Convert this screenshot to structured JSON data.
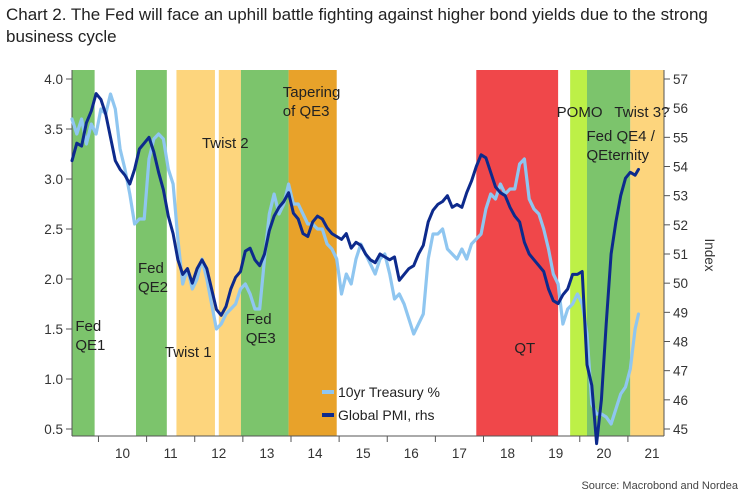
{
  "title": "Chart 2. The Fed will face an uphill battle fighting against higher bond yields due to the strong business cycle",
  "source": "Source: Macrobond and Nordea",
  "chart_data": {
    "type": "line",
    "x_range": [
      2009.45,
      2021.75
    ],
    "x_ticks": [
      {
        "label": "10",
        "value": 2010.5
      },
      {
        "label": "11",
        "value": 2011.5
      },
      {
        "label": "12",
        "value": 2012.5
      },
      {
        "label": "13",
        "value": 2013.5
      },
      {
        "label": "14",
        "value": 2014.5
      },
      {
        "label": "15",
        "value": 2015.5
      },
      {
        "label": "16",
        "value": 2016.5
      },
      {
        "label": "17",
        "value": 2017.5
      },
      {
        "label": "18",
        "value": 2018.5
      },
      {
        "label": "19",
        "value": 2019.5
      },
      {
        "label": "20",
        "value": 2020.5
      },
      {
        "label": "21",
        "value": 2021.5
      }
    ],
    "y_left": {
      "min": 0.5,
      "max": 4.0,
      "step": 0.5,
      "tick_labels": [
        "0.5",
        "1.0",
        "1.5",
        "2.0",
        "2.5",
        "3.0",
        "3.5",
        "4.0"
      ]
    },
    "y_right": {
      "min": 45,
      "max": 57,
      "step": 1,
      "label": "Index",
      "tick_labels": [
        "45",
        "46",
        "47",
        "48",
        "49",
        "50",
        "51",
        "52",
        "53",
        "54",
        "55",
        "56",
        "57"
      ]
    },
    "bands": [
      {
        "start": 2009.45,
        "end": 2009.92,
        "color": "#7cc46c",
        "label": "Fed\nQE1",
        "label_x": 2009.52,
        "label_y": 1.48
      },
      {
        "start": 2010.78,
        "end": 2011.42,
        "color": "#7cc46c",
        "label": "Fed\nQE2",
        "label_x": 2010.82,
        "label_y": 2.06
      },
      {
        "start": 2011.62,
        "end": 2012.42,
        "color": "#fdd57d",
        "label": "Twist 1",
        "label_x": 2011.38,
        "label_y": 1.22
      },
      {
        "start": 2012.5,
        "end": 2012.96,
        "color": "#fdd57d",
        "label": "Twist 2",
        "label_x": 2012.15,
        "label_y": 3.31
      },
      {
        "start": 2012.96,
        "end": 2013.95,
        "color": "#7cc46c",
        "label": "Fed\nQE3",
        "label_x": 2013.06,
        "label_y": 1.55
      },
      {
        "start": 2013.95,
        "end": 2014.95,
        "color": "#e8a22a",
        "label": "Tapering\nof QE3",
        "label_x": 2013.83,
        "label_y": 3.82
      },
      {
        "start": 2017.85,
        "end": 2019.55,
        "color": "#f0474a",
        "label": "QT",
        "label_x": 2018.64,
        "label_y": 1.26
      },
      {
        "start": 2019.8,
        "end": 2020.15,
        "color": "#bdf047",
        "label": "POMO",
        "label_x": 2019.52,
        "label_y": 3.62
      },
      {
        "start": 2020.15,
        "end": 2021.05,
        "color": "#7cc46c",
        "label": "Fed QE4 /\nQEternity",
        "label_x": 2020.14,
        "label_y": 3.38
      },
      {
        "start": 2021.05,
        "end": 2021.75,
        "color": "#fdd57d",
        "label": "Twist 3?",
        "label_x": 2020.72,
        "label_y": 3.62
      }
    ],
    "series": [
      {
        "name": "10yr Treasury %",
        "axis": "left",
        "color": "#8fc6f0",
        "points": [
          [
            2009.45,
            3.6
          ],
          [
            2009.55,
            3.45
          ],
          [
            2009.65,
            3.6
          ],
          [
            2009.75,
            3.35
          ],
          [
            2009.85,
            3.55
          ],
          [
            2009.95,
            3.45
          ],
          [
            2010.05,
            3.7
          ],
          [
            2010.15,
            3.65
          ],
          [
            2010.25,
            3.85
          ],
          [
            2010.35,
            3.7
          ],
          [
            2010.45,
            3.3
          ],
          [
            2010.55,
            3.1
          ],
          [
            2010.65,
            2.85
          ],
          [
            2010.75,
            2.55
          ],
          [
            2010.85,
            2.6
          ],
          [
            2010.95,
            2.6
          ],
          [
            2011.05,
            3.2
          ],
          [
            2011.15,
            3.4
          ],
          [
            2011.25,
            3.45
          ],
          [
            2011.35,
            3.4
          ],
          [
            2011.45,
            3.1
          ],
          [
            2011.55,
            2.95
          ],
          [
            2011.65,
            2.4
          ],
          [
            2011.75,
            1.95
          ],
          [
            2011.85,
            2.1
          ],
          [
            2011.95,
            1.9
          ],
          [
            2012.05,
            2.0
          ],
          [
            2012.15,
            2.2
          ],
          [
            2012.25,
            2.0
          ],
          [
            2012.35,
            1.75
          ],
          [
            2012.45,
            1.5
          ],
          [
            2012.55,
            1.55
          ],
          [
            2012.65,
            1.65
          ],
          [
            2012.75,
            1.7
          ],
          [
            2012.85,
            1.75
          ],
          [
            2012.95,
            1.9
          ],
          [
            2013.05,
            1.95
          ],
          [
            2013.15,
            1.85
          ],
          [
            2013.25,
            1.7
          ],
          [
            2013.35,
            1.7
          ],
          [
            2013.45,
            2.2
          ],
          [
            2013.55,
            2.65
          ],
          [
            2013.65,
            2.85
          ],
          [
            2013.75,
            2.65
          ],
          [
            2013.85,
            2.75
          ],
          [
            2013.95,
            2.95
          ],
          [
            2014.05,
            2.75
          ],
          [
            2014.15,
            2.75
          ],
          [
            2014.25,
            2.65
          ],
          [
            2014.35,
            2.55
          ],
          [
            2014.45,
            2.55
          ],
          [
            2014.55,
            2.5
          ],
          [
            2014.65,
            2.5
          ],
          [
            2014.75,
            2.35
          ],
          [
            2014.85,
            2.3
          ],
          [
            2014.95,
            2.2
          ],
          [
            2015.05,
            1.85
          ],
          [
            2015.15,
            2.05
          ],
          [
            2015.25,
            1.95
          ],
          [
            2015.35,
            2.2
          ],
          [
            2015.45,
            2.35
          ],
          [
            2015.55,
            2.25
          ],
          [
            2015.65,
            2.15
          ],
          [
            2015.75,
            2.05
          ],
          [
            2015.85,
            2.2
          ],
          [
            2015.95,
            2.25
          ],
          [
            2016.05,
            2.05
          ],
          [
            2016.15,
            1.8
          ],
          [
            2016.25,
            1.85
          ],
          [
            2016.35,
            1.75
          ],
          [
            2016.45,
            1.6
          ],
          [
            2016.55,
            1.45
          ],
          [
            2016.65,
            1.55
          ],
          [
            2016.75,
            1.65
          ],
          [
            2016.85,
            2.2
          ],
          [
            2016.95,
            2.45
          ],
          [
            2017.05,
            2.45
          ],
          [
            2017.15,
            2.5
          ],
          [
            2017.25,
            2.3
          ],
          [
            2017.35,
            2.25
          ],
          [
            2017.45,
            2.2
          ],
          [
            2017.55,
            2.3
          ],
          [
            2017.65,
            2.2
          ],
          [
            2017.75,
            2.35
          ],
          [
            2017.85,
            2.4
          ],
          [
            2017.95,
            2.45
          ],
          [
            2018.05,
            2.7
          ],
          [
            2018.15,
            2.85
          ],
          [
            2018.25,
            2.8
          ],
          [
            2018.35,
            2.95
          ],
          [
            2018.45,
            2.85
          ],
          [
            2018.55,
            2.9
          ],
          [
            2018.65,
            2.9
          ],
          [
            2018.75,
            3.15
          ],
          [
            2018.85,
            3.2
          ],
          [
            2018.95,
            2.8
          ],
          [
            2019.05,
            2.7
          ],
          [
            2019.15,
            2.65
          ],
          [
            2019.25,
            2.5
          ],
          [
            2019.35,
            2.3
          ],
          [
            2019.45,
            2.05
          ],
          [
            2019.55,
            1.95
          ],
          [
            2019.65,
            1.55
          ],
          [
            2019.75,
            1.7
          ],
          [
            2019.85,
            1.75
          ],
          [
            2019.95,
            1.85
          ],
          [
            2020.05,
            1.75
          ],
          [
            2020.15,
            1.45
          ],
          [
            2020.25,
            0.75
          ],
          [
            2020.35,
            0.65
          ],
          [
            2020.45,
            0.65
          ],
          [
            2020.55,
            0.62
          ],
          [
            2020.65,
            0.55
          ],
          [
            2020.75,
            0.7
          ],
          [
            2020.85,
            0.85
          ],
          [
            2020.95,
            0.92
          ],
          [
            2021.05,
            1.1
          ],
          [
            2021.15,
            1.5
          ],
          [
            2021.22,
            1.65
          ]
        ]
      },
      {
        "name": "Global PMI, rhs",
        "axis": "right",
        "color": "#0d2a8c",
        "points": [
          [
            2009.45,
            54.2
          ],
          [
            2009.55,
            54.8
          ],
          [
            2009.65,
            54.7
          ],
          [
            2009.75,
            55.5
          ],
          [
            2009.85,
            55.9
          ],
          [
            2009.95,
            56.5
          ],
          [
            2010.05,
            56.3
          ],
          [
            2010.15,
            55.8
          ],
          [
            2010.25,
            55.0
          ],
          [
            2010.35,
            54.2
          ],
          [
            2010.45,
            53.9
          ],
          [
            2010.55,
            53.7
          ],
          [
            2010.65,
            53.4
          ],
          [
            2010.75,
            53.9
          ],
          [
            2010.85,
            54.6
          ],
          [
            2010.95,
            54.8
          ],
          [
            2011.05,
            55.0
          ],
          [
            2011.15,
            54.5
          ],
          [
            2011.25,
            53.8
          ],
          [
            2011.35,
            53.2
          ],
          [
            2011.45,
            52.3
          ],
          [
            2011.55,
            51.7
          ],
          [
            2011.65,
            50.8
          ],
          [
            2011.75,
            50.3
          ],
          [
            2011.85,
            50.5
          ],
          [
            2011.95,
            50.0
          ],
          [
            2012.05,
            50.5
          ],
          [
            2012.15,
            50.8
          ],
          [
            2012.25,
            50.5
          ],
          [
            2012.35,
            49.8
          ],
          [
            2012.45,
            49.1
          ],
          [
            2012.55,
            48.9
          ],
          [
            2012.65,
            49.2
          ],
          [
            2012.75,
            49.8
          ],
          [
            2012.85,
            50.2
          ],
          [
            2012.95,
            50.4
          ],
          [
            2013.05,
            51.1
          ],
          [
            2013.15,
            51.2
          ],
          [
            2013.25,
            50.8
          ],
          [
            2013.35,
            50.6
          ],
          [
            2013.45,
            51.0
          ],
          [
            2013.55,
            51.8
          ],
          [
            2013.65,
            52.3
          ],
          [
            2013.75,
            52.6
          ],
          [
            2013.85,
            52.8
          ],
          [
            2013.95,
            53.1
          ],
          [
            2014.05,
            52.4
          ],
          [
            2014.15,
            52.2
          ],
          [
            2014.25,
            51.7
          ],
          [
            2014.35,
            51.6
          ],
          [
            2014.45,
            52.1
          ],
          [
            2014.55,
            52.3
          ],
          [
            2014.65,
            52.2
          ],
          [
            2014.75,
            51.9
          ],
          [
            2014.85,
            51.7
          ],
          [
            2014.95,
            51.6
          ],
          [
            2015.05,
            51.5
          ],
          [
            2015.15,
            51.7
          ],
          [
            2015.25,
            51.2
          ],
          [
            2015.35,
            51.4
          ],
          [
            2015.45,
            51.3
          ],
          [
            2015.55,
            51.0
          ],
          [
            2015.65,
            50.8
          ],
          [
            2015.75,
            50.7
          ],
          [
            2015.85,
            51.0
          ],
          [
            2015.95,
            50.9
          ],
          [
            2016.05,
            50.8
          ],
          [
            2016.15,
            50.9
          ],
          [
            2016.25,
            50.1
          ],
          [
            2016.35,
            50.3
          ],
          [
            2016.45,
            50.5
          ],
          [
            2016.55,
            50.6
          ],
          [
            2016.65,
            51.0
          ],
          [
            2016.75,
            51.3
          ],
          [
            2016.85,
            52.1
          ],
          [
            2016.95,
            52.5
          ],
          [
            2017.05,
            52.7
          ],
          [
            2017.15,
            52.8
          ],
          [
            2017.25,
            53.0
          ],
          [
            2017.35,
            52.6
          ],
          [
            2017.45,
            52.7
          ],
          [
            2017.55,
            52.6
          ],
          [
            2017.65,
            53.1
          ],
          [
            2017.75,
            53.5
          ],
          [
            2017.85,
            54.0
          ],
          [
            2017.95,
            54.4
          ],
          [
            2018.05,
            54.3
          ],
          [
            2018.15,
            53.8
          ],
          [
            2018.25,
            53.3
          ],
          [
            2018.35,
            53.1
          ],
          [
            2018.45,
            53.0
          ],
          [
            2018.55,
            52.6
          ],
          [
            2018.65,
            52.3
          ],
          [
            2018.75,
            52.1
          ],
          [
            2018.85,
            51.4
          ],
          [
            2018.95,
            51.0
          ],
          [
            2019.05,
            50.8
          ],
          [
            2019.15,
            50.6
          ],
          [
            2019.25,
            50.4
          ],
          [
            2019.35,
            49.8
          ],
          [
            2019.45,
            49.4
          ],
          [
            2019.55,
            49.3
          ],
          [
            2019.65,
            49.6
          ],
          [
            2019.75,
            49.8
          ],
          [
            2019.85,
            50.3
          ],
          [
            2019.95,
            50.3
          ],
          [
            2020.05,
            50.4
          ],
          [
            2020.15,
            47.2
          ],
          [
            2020.25,
            46.5
          ],
          [
            2020.35,
            44.5
          ],
          [
            2020.45,
            46.0
          ],
          [
            2020.55,
            48.6
          ],
          [
            2020.65,
            51.0
          ],
          [
            2020.75,
            52.1
          ],
          [
            2020.85,
            53.0
          ],
          [
            2020.95,
            53.6
          ],
          [
            2021.05,
            53.8
          ],
          [
            2021.15,
            53.7
          ],
          [
            2021.22,
            53.9
          ]
        ]
      }
    ],
    "legend": {
      "placement": "bottom-right inside plot"
    }
  }
}
